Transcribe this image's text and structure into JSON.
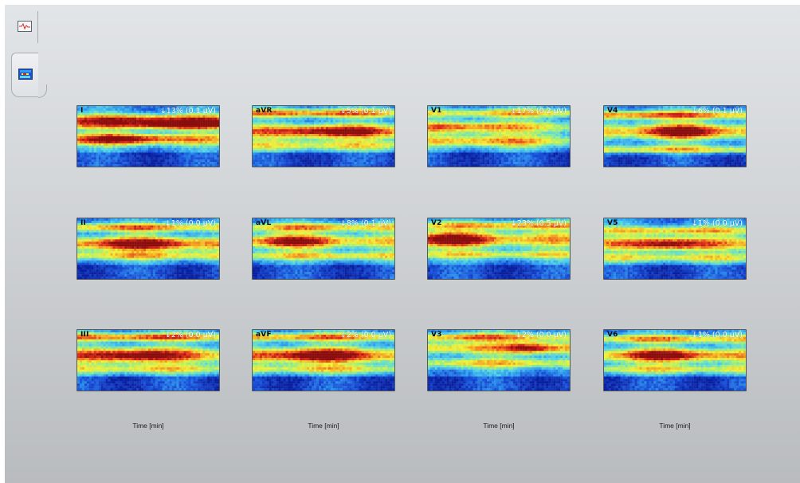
{
  "tabs": [
    {
      "name": "waveform",
      "icon": "waveform-chart-icon"
    },
    {
      "name": "heatmap",
      "icon": "heatmap-chart-icon",
      "selected": true
    }
  ],
  "leads": [
    {
      "label": "I",
      "stat": "↓13% (0.1 µV)"
    },
    {
      "label": "aVR",
      "stat": "↓5% (0.1 µV)"
    },
    {
      "label": "V1",
      "stat": "↓17% (0.2 µV)"
    },
    {
      "label": "V4",
      "stat": "↓6% (0.1 µV)"
    },
    {
      "label": "II",
      "stat": "↓1% (0.0 µV)"
    },
    {
      "label": "aVL",
      "stat": "↓8% (0.1 µV)"
    },
    {
      "label": "V2",
      "stat": "↓23% (0.5 µV)"
    },
    {
      "label": "V5",
      "stat": "↓1% (0.0 µV)"
    },
    {
      "label": "III",
      "stat": "↓2% (0.0 µV)"
    },
    {
      "label": "aVF",
      "stat": "↓2% (0.0 µV)"
    },
    {
      "label": "V3",
      "stat": "↓2% (0.0 µV)"
    },
    {
      "label": "V6",
      "stat": "↓1% (0.0 µV)"
    }
  ],
  "x_axis_labels": [
    "Time [min]",
    "Time [min]",
    "Time [min]",
    "Time [min]"
  ],
  "colors": {
    "colormap": [
      "#0a1f9e",
      "#1a4fd8",
      "#2f9ef0",
      "#58d8e8",
      "#9ff07a",
      "#f4f23a",
      "#f5a020",
      "#e0281c",
      "#8a0c0c"
    ]
  }
}
